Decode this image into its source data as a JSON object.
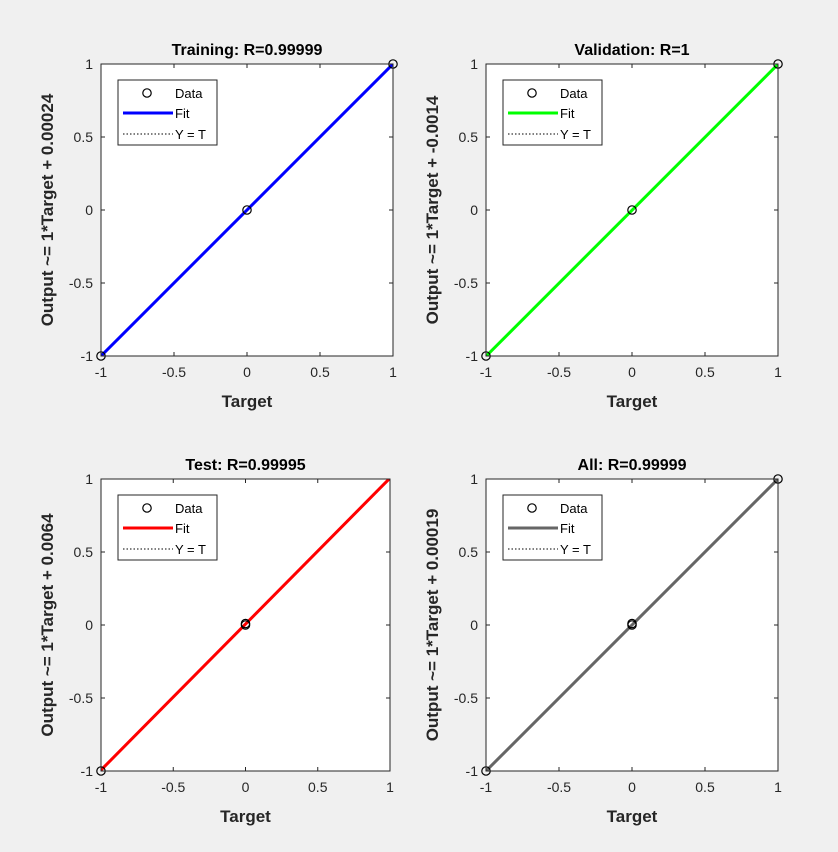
{
  "figure": {
    "background": "#f0f0f0",
    "axes_background": "#ffffff"
  },
  "chart_data": [
    {
      "type": "scatter",
      "title": "Training: R=0.99999",
      "xlabel": "Target",
      "ylabel": "Output ~= 1*Target + 0.00024",
      "xlim": [
        -1,
        1
      ],
      "ylim": [
        -1,
        1
      ],
      "xticks": [
        "-1",
        "-0.5",
        "0",
        "0.5",
        "1"
      ],
      "yticks": [
        "-1",
        "-0.5",
        "0",
        "0.5",
        "1"
      ],
      "grid": false,
      "legend_position": "top-left",
      "fit_color": "#0000ff",
      "fit": {
        "slope": 1,
        "intercept": 0.00024
      },
      "points": [
        [
          -1,
          -1
        ],
        [
          0,
          0
        ],
        [
          1,
          1
        ]
      ],
      "legend": [
        "Data",
        "Fit",
        "Y = T"
      ]
    },
    {
      "type": "scatter",
      "title": "Validation: R=1",
      "xlabel": "Target",
      "ylabel": "Output ~= 1*Target + -0.0014",
      "xlim": [
        -1,
        1
      ],
      "ylim": [
        -1,
        1
      ],
      "xticks": [
        "-1",
        "-0.5",
        "0",
        "0.5",
        "1"
      ],
      "yticks": [
        "-1",
        "-0.5",
        "0",
        "0.5",
        "1"
      ],
      "grid": false,
      "legend_position": "top-left",
      "fit_color": "#00ff00",
      "fit": {
        "slope": 1,
        "intercept": -0.0014
      },
      "points": [
        [
          -1,
          -1
        ],
        [
          0,
          0
        ],
        [
          1,
          1
        ]
      ],
      "legend": [
        "Data",
        "Fit",
        "Y = T"
      ]
    },
    {
      "type": "scatter",
      "title": "Test: R=0.99995",
      "xlabel": "Target",
      "ylabel": "Output ~= 1*Target + 0.0064",
      "xlim": [
        -1,
        1
      ],
      "ylim": [
        -1,
        1
      ],
      "xticks": [
        "-1",
        "-0.5",
        "0",
        "0.5",
        "1"
      ],
      "yticks": [
        "-1",
        "-0.5",
        "0",
        "0.5",
        "1"
      ],
      "grid": false,
      "legend_position": "top-left",
      "fit_color": "#ff0000",
      "fit": {
        "slope": 1,
        "intercept": 0.0064
      },
      "points": [
        [
          -1,
          -1
        ],
        [
          0,
          0.01
        ],
        [
          0,
          0.0
        ]
      ],
      "legend": [
        "Data",
        "Fit",
        "Y = T"
      ]
    },
    {
      "type": "scatter",
      "title": "All: R=0.99999",
      "xlabel": "Target",
      "ylabel": "Output ~= 1*Target + 0.00019",
      "xlim": [
        -1,
        1
      ],
      "ylim": [
        -1,
        1
      ],
      "xticks": [
        "-1",
        "-0.5",
        "0",
        "0.5",
        "1"
      ],
      "yticks": [
        "-1",
        "-0.5",
        "0",
        "0.5",
        "1"
      ],
      "grid": false,
      "legend_position": "top-left",
      "fit_color": "#666666",
      "fit": {
        "slope": 1,
        "intercept": 0.00019
      },
      "points": [
        [
          -1,
          -1
        ],
        [
          0,
          0
        ],
        [
          0,
          0.01
        ],
        [
          1,
          1
        ]
      ],
      "legend": [
        "Data",
        "Fit",
        "Y = T"
      ]
    }
  ]
}
